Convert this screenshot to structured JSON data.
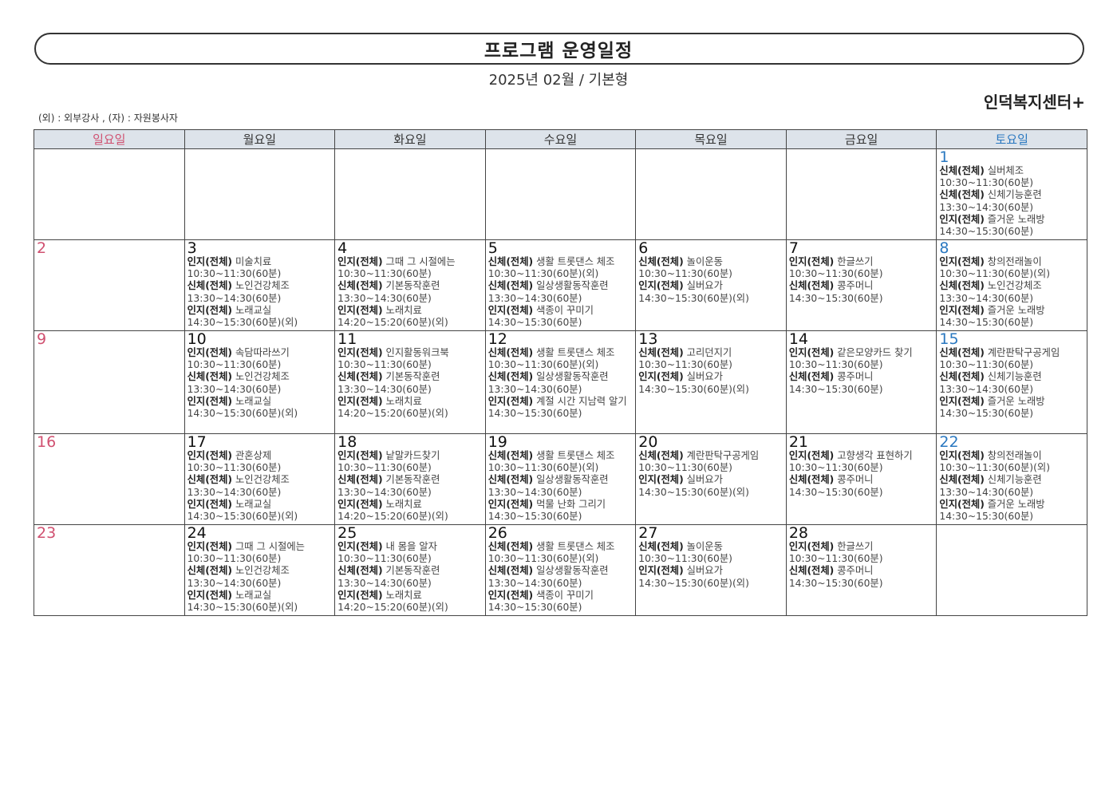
{
  "header": {
    "title": "프로그램 운영일정",
    "subtitle": "2025년 02월 / 기본형",
    "organization": "인덕복지센터+",
    "legend": "(외) : 외부강사 , (자) : 자원봉사자"
  },
  "colors": {
    "sunday": "#d05070",
    "saturday": "#2a78c0",
    "header_bg": "#dde3ea"
  },
  "weekdays": [
    "일요일",
    "월요일",
    "화요일",
    "수요일",
    "목요일",
    "금요일",
    "토요일"
  ],
  "weeks": [
    [
      {
        "date": "",
        "events": []
      },
      {
        "date": "",
        "events": []
      },
      {
        "date": "",
        "events": []
      },
      {
        "date": "",
        "events": []
      },
      {
        "date": "",
        "events": []
      },
      {
        "date": "",
        "events": []
      },
      {
        "date": "1",
        "events": [
          {
            "cat": "신체(전체)",
            "name": "실버체조",
            "time": "10:30~11:30(60분)"
          },
          {
            "cat": "신체(전체)",
            "name": "신체기능훈련",
            "time": "13:30~14:30(60분)"
          },
          {
            "cat": "인지(전체)",
            "name": "즐거운 노래방",
            "time": "14:30~15:30(60분)"
          }
        ]
      }
    ],
    [
      {
        "date": "2",
        "events": []
      },
      {
        "date": "3",
        "events": [
          {
            "cat": "인지(전체)",
            "name": "미술치료",
            "time": "10:30~11:30(60분)"
          },
          {
            "cat": "신체(전체)",
            "name": "노인건강체조",
            "time": "13:30~14:30(60분)"
          },
          {
            "cat": "인지(전체)",
            "name": "노래교실",
            "time": "14:30~15:30(60분)(외)"
          }
        ]
      },
      {
        "date": "4",
        "events": [
          {
            "cat": "인지(전체)",
            "name": "그때 그 시절에는",
            "time": "10:30~11:30(60분)"
          },
          {
            "cat": "신체(전체)",
            "name": "기본동작훈련",
            "time": "13:30~14:30(60분)"
          },
          {
            "cat": "인지(전체)",
            "name": "노래치료",
            "time": "14:20~15:20(60분)(외)"
          }
        ]
      },
      {
        "date": "5",
        "events": [
          {
            "cat": "신체(전체)",
            "name": "생활 트롯댄스 체조",
            "time": "10:30~11:30(60분)(외)"
          },
          {
            "cat": "신체(전체)",
            "name": "일상생활동작훈련",
            "time": "13:30~14:30(60분)"
          },
          {
            "cat": "인지(전체)",
            "name": "색종이 꾸미기",
            "time": "14:30~15:30(60분)"
          }
        ]
      },
      {
        "date": "6",
        "events": [
          {
            "cat": "신체(전체)",
            "name": "놀이운동",
            "time": "10:30~11:30(60분)"
          },
          {
            "cat": "인지(전체)",
            "name": "실버요가",
            "time": "14:30~15:30(60분)(외)"
          }
        ]
      },
      {
        "date": "7",
        "events": [
          {
            "cat": "인지(전체)",
            "name": "한글쓰기",
            "time": "10:30~11:30(60분)"
          },
          {
            "cat": "신체(전체)",
            "name": "콩주머니",
            "time": "14:30~15:30(60분)"
          }
        ]
      },
      {
        "date": "8",
        "events": [
          {
            "cat": "인지(전체)",
            "name": "창의전래놀이",
            "time": "10:30~11:30(60분)(외)"
          },
          {
            "cat": "신체(전체)",
            "name": "노인건강체조",
            "time": "13:30~14:30(60분)"
          },
          {
            "cat": "인지(전체)",
            "name": "즐거운 노래방",
            "time": "14:30~15:30(60분)"
          }
        ]
      }
    ],
    [
      {
        "date": "9",
        "events": []
      },
      {
        "date": "10",
        "events": [
          {
            "cat": "인지(전체)",
            "name": "속담따라쓰기",
            "time": "10:30~11:30(60분)"
          },
          {
            "cat": "신체(전체)",
            "name": "노인건강체조",
            "time": "13:30~14:30(60분)"
          },
          {
            "cat": "인지(전체)",
            "name": "노래교실",
            "time": "14:30~15:30(60분)(외)"
          }
        ]
      },
      {
        "date": "11",
        "events": [
          {
            "cat": "인지(전체)",
            "name": "인지활동워크북",
            "time": "10:30~11:30(60분)"
          },
          {
            "cat": "신체(전체)",
            "name": "기본동작훈련",
            "time": "13:30~14:30(60분)"
          },
          {
            "cat": "인지(전체)",
            "name": "노래치료",
            "time": "14:20~15:20(60분)(외)"
          }
        ]
      },
      {
        "date": "12",
        "events": [
          {
            "cat": "신체(전체)",
            "name": "생활 트롯댄스 체조",
            "time": "10:30~11:30(60분)(외)"
          },
          {
            "cat": "신체(전체)",
            "name": "일상생활동작훈련",
            "time": "13:30~14:30(60분)"
          },
          {
            "cat": "인지(전체)",
            "name": "계절 시간 지남력 알기",
            "time": "14:30~15:30(60분)"
          }
        ]
      },
      {
        "date": "13",
        "events": [
          {
            "cat": "신체(전체)",
            "name": "고리던지기",
            "time": "10:30~11:30(60분)"
          },
          {
            "cat": "인지(전체)",
            "name": "실버요가",
            "time": "14:30~15:30(60분)(외)"
          }
        ]
      },
      {
        "date": "14",
        "events": [
          {
            "cat": "인지(전체)",
            "name": "같은모양카드 찾기",
            "time": "10:30~11:30(60분)"
          },
          {
            "cat": "신체(전체)",
            "name": "콩주머니",
            "time": "14:30~15:30(60분)"
          }
        ]
      },
      {
        "date": "15",
        "events": [
          {
            "cat": "신체(전체)",
            "name": "계란판탁구공게임",
            "time": "10:30~11:30(60분)"
          },
          {
            "cat": "신체(전체)",
            "name": "신체기능훈련",
            "time": "13:30~14:30(60분)"
          },
          {
            "cat": "인지(전체)",
            "name": "즐거운 노래방",
            "time": "14:30~15:30(60분)"
          }
        ]
      }
    ],
    [
      {
        "date": "16",
        "events": []
      },
      {
        "date": "17",
        "events": [
          {
            "cat": "인지(전체)",
            "name": "관혼상제",
            "time": "10:30~11:30(60분)"
          },
          {
            "cat": "신체(전체)",
            "name": "노인건강체조",
            "time": "13:30~14:30(60분)"
          },
          {
            "cat": "인지(전체)",
            "name": "노래교실",
            "time": "14:30~15:30(60분)(외)"
          }
        ]
      },
      {
        "date": "18",
        "events": [
          {
            "cat": "인지(전체)",
            "name": "낱말카드찾기",
            "time": "10:30~11:30(60분)"
          },
          {
            "cat": "신체(전체)",
            "name": "기본동작훈련",
            "time": "13:30~14:30(60분)"
          },
          {
            "cat": "인지(전체)",
            "name": "노래치료",
            "time": "14:20~15:20(60분)(외)"
          }
        ]
      },
      {
        "date": "19",
        "events": [
          {
            "cat": "신체(전체)",
            "name": "생활 트롯댄스 체조",
            "time": "10:30~11:30(60분)(외)"
          },
          {
            "cat": "신체(전체)",
            "name": "일상생활동작훈련",
            "time": "13:30~14:30(60분)"
          },
          {
            "cat": "인지(전체)",
            "name": "먹물 난화 그리기",
            "time": "14:30~15:30(60분)"
          }
        ]
      },
      {
        "date": "20",
        "events": [
          {
            "cat": "신체(전체)",
            "name": "계란판탁구공게임",
            "time": "10:30~11:30(60분)"
          },
          {
            "cat": "인지(전체)",
            "name": "실버요가",
            "time": "14:30~15:30(60분)(외)"
          }
        ]
      },
      {
        "date": "21",
        "events": [
          {
            "cat": "인지(전체)",
            "name": "고향생각 표현하기",
            "time": "10:30~11:30(60분)"
          },
          {
            "cat": "신체(전체)",
            "name": "콩주머니",
            "time": "14:30~15:30(60분)"
          }
        ]
      },
      {
        "date": "22",
        "events": [
          {
            "cat": "인지(전체)",
            "name": "창의전래놀이",
            "time": "10:30~11:30(60분)(외)"
          },
          {
            "cat": "신체(전체)",
            "name": "신체기능훈련",
            "time": "13:30~14:30(60분)"
          },
          {
            "cat": "인지(전체)",
            "name": "즐거운 노래방",
            "time": "14:30~15:30(60분)"
          }
        ]
      }
    ],
    [
      {
        "date": "23",
        "events": []
      },
      {
        "date": "24",
        "events": [
          {
            "cat": "인지(전체)",
            "name": "그때 그 시절에는",
            "time": "10:30~11:30(60분)"
          },
          {
            "cat": "신체(전체)",
            "name": "노인건강체조",
            "time": "13:30~14:30(60분)"
          },
          {
            "cat": "인지(전체)",
            "name": "노래교실",
            "time": "14:30~15:30(60분)(외)"
          }
        ]
      },
      {
        "date": "25",
        "events": [
          {
            "cat": "인지(전체)",
            "name": "내 몸을 알자",
            "time": "10:30~11:30(60분)"
          },
          {
            "cat": "신체(전체)",
            "name": "기본동작훈련",
            "time": "13:30~14:30(60분)"
          },
          {
            "cat": "인지(전체)",
            "name": "노래치료",
            "time": "14:20~15:20(60분)(외)"
          }
        ]
      },
      {
        "date": "26",
        "events": [
          {
            "cat": "신체(전체)",
            "name": "생활 트롯댄스 체조",
            "time": "10:30~11:30(60분)(외)"
          },
          {
            "cat": "신체(전체)",
            "name": "일상생활동작훈련",
            "time": "13:30~14:30(60분)"
          },
          {
            "cat": "인지(전체)",
            "name": "색종이 꾸미기",
            "time": "14:30~15:30(60분)"
          }
        ]
      },
      {
        "date": "27",
        "events": [
          {
            "cat": "신체(전체)",
            "name": "놀이운동",
            "time": "10:30~11:30(60분)"
          },
          {
            "cat": "인지(전체)",
            "name": "실버요가",
            "time": "14:30~15:30(60분)(외)"
          }
        ]
      },
      {
        "date": "28",
        "events": [
          {
            "cat": "인지(전체)",
            "name": "한글쓰기",
            "time": "10:30~11:30(60분)"
          },
          {
            "cat": "신체(전체)",
            "name": "콩주머니",
            "time": "14:30~15:30(60분)"
          }
        ]
      },
      {
        "date": "",
        "events": []
      }
    ]
  ]
}
